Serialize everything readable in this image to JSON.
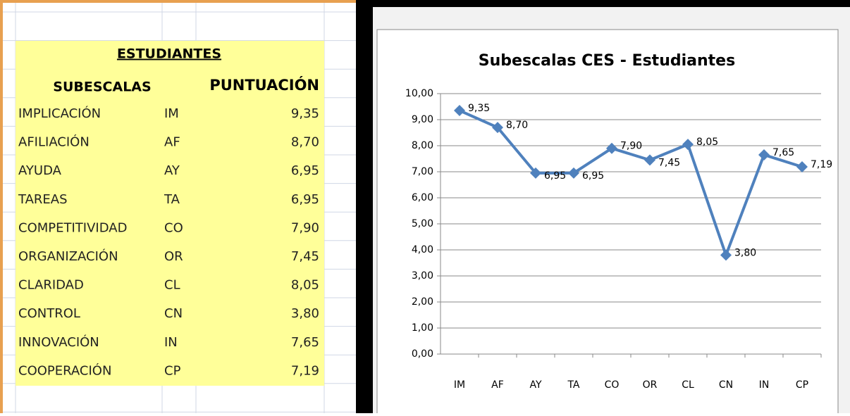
{
  "table": {
    "title": "ESTUDIANTES",
    "headers": [
      "SUBESCALAS",
      "PUNTUACIÓN"
    ],
    "rows": [
      [
        "IMPLICACIÓN",
        "IM",
        "9,35"
      ],
      [
        "AFILIACIÓN",
        "AF",
        "8,70"
      ],
      [
        "AYUDA",
        "AY",
        "6,95"
      ],
      [
        "TAREAS",
        "TA",
        "6,95"
      ],
      [
        "COMPETITIVIDAD",
        "CO",
        "7,90"
      ],
      [
        "ORGANIZACIÓN",
        "OR",
        "7,45"
      ],
      [
        "CLARIDAD",
        "CL",
        "8,05"
      ],
      [
        "CONTROL",
        "CN",
        "3,80"
      ],
      [
        "INNOVACIÓN",
        "IN",
        "7,65"
      ],
      [
        "COOPERACIÓN",
        "CP",
        "7,19"
      ]
    ]
  },
  "chart_data": {
    "type": "line",
    "title": "Subescalas CES - Estudiantes",
    "categories": [
      "IM",
      "AF",
      "AY",
      "TA",
      "CO",
      "OR",
      "CL",
      "CN",
      "IN",
      "CP"
    ],
    "values": [
      9.35,
      8.7,
      6.95,
      6.95,
      7.9,
      7.45,
      8.05,
      3.8,
      7.65,
      7.19
    ],
    "value_labels": [
      "9,35",
      "8,70",
      "6,95",
      "6,95",
      "7,90",
      "7,45",
      "8,05",
      "3,80",
      "7,65",
      "7,19"
    ],
    "color": "#4f81bd",
    "ylim": [
      0,
      10
    ],
    "yticks": [
      {
        "value": 0,
        "label": "0,00"
      },
      {
        "value": 1,
        "label": "1,00"
      },
      {
        "value": 2,
        "label": "2,00"
      },
      {
        "value": 3,
        "label": "3,00"
      },
      {
        "value": 4,
        "label": "4,00"
      },
      {
        "value": 5,
        "label": "5,00"
      },
      {
        "value": 6,
        "label": "6,00"
      },
      {
        "value": 7,
        "label": "7,00"
      },
      {
        "value": 8,
        "label": "8,00"
      },
      {
        "value": 9,
        "label": "9,00"
      },
      {
        "value": 10,
        "label": "10,00"
      }
    ],
    "grid": true
  }
}
